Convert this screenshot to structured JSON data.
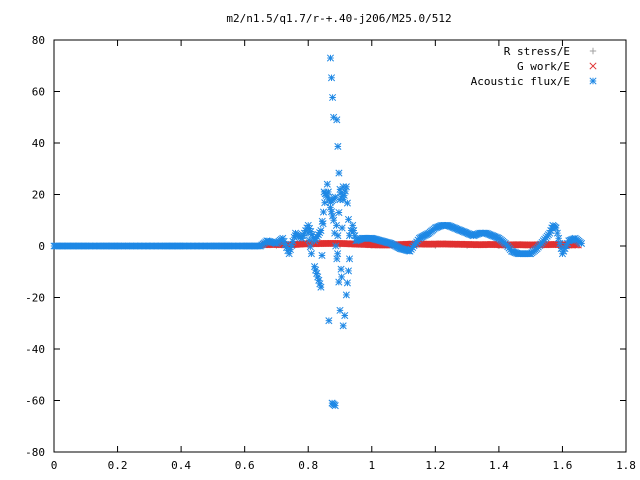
{
  "chart_data": {
    "type": "scatter",
    "title": "m2/n1.5/q1.7/r-+.40-j206/M25.0/512",
    "xlabel": "",
    "ylabel": "",
    "xlim": [
      0,
      1.8
    ],
    "ylim": [
      -80,
      80
    ],
    "x_ticks": [
      "0",
      "0.2",
      "0.4",
      "0.6",
      "0.8",
      "1",
      "1.2",
      "1.4",
      "1.6",
      "1.8"
    ],
    "y_ticks": [
      "80",
      "60",
      "40",
      "20",
      "0",
      "-20",
      "-40",
      "-60",
      "-80"
    ],
    "grid": false,
    "legend_position": "top-right",
    "series": [
      {
        "name": "R stress/E",
        "marker": "plus",
        "color": "#a0a0a0",
        "x": [
          0.02,
          0.1,
          0.2,
          0.3,
          0.4,
          0.5,
          0.6,
          0.7,
          0.8,
          0.9,
          1.0,
          1.1,
          1.2,
          1.3,
          1.4,
          1.5,
          1.6
        ],
        "y": [
          0,
          0,
          0,
          0,
          0,
          0,
          0,
          0.2,
          0.3,
          0.3,
          0.3,
          0.2,
          0.2,
          0.2,
          0.1,
          0.1,
          0.1
        ]
      },
      {
        "name": "G work/E",
        "marker": "cross",
        "color": "#e03030",
        "x": [
          0.66,
          0.7,
          0.74,
          0.78,
          0.82,
          0.86,
          0.9,
          0.94,
          0.98,
          1.02,
          1.06,
          1.1,
          1.14,
          1.18,
          1.22,
          1.26,
          1.3,
          1.34,
          1.38,
          1.42,
          1.46,
          1.5,
          1.54,
          1.58,
          1.62,
          1.65
        ],
        "y": [
          0.5,
          0.6,
          0.4,
          0.8,
          0.9,
          1.0,
          1.0,
          0.8,
          0.6,
          0.4,
          0.4,
          0.6,
          0.8,
          0.7,
          0.8,
          0.7,
          0.6,
          0.5,
          0.6,
          0.4,
          0.5,
          0.4,
          0.5,
          0.6,
          0.4,
          0.4
        ]
      },
      {
        "name": "Acoustic flux/E",
        "marker": "star",
        "color": "#1e88e5",
        "x": [
          0.0,
          0.05,
          0.1,
          0.15,
          0.2,
          0.25,
          0.3,
          0.35,
          0.4,
          0.45,
          0.5,
          0.55,
          0.6,
          0.65,
          0.67,
          0.7,
          0.72,
          0.74,
          0.76,
          0.78,
          0.8,
          0.82,
          0.84,
          0.86,
          0.87,
          0.88,
          0.89,
          0.9,
          0.91,
          0.92,
          0.93,
          0.94,
          0.95,
          0.97,
          1.0,
          1.03,
          1.06,
          1.09,
          1.12,
          1.15,
          1.18,
          1.2,
          1.22,
          1.24,
          1.26,
          1.28,
          1.3,
          1.32,
          1.34,
          1.36,
          1.38,
          1.4,
          1.42,
          1.44,
          1.46,
          1.48,
          1.5,
          1.52,
          1.54,
          1.56,
          1.57,
          1.58,
          1.6,
          1.62,
          1.64,
          1.66,
          0.87,
          0.88,
          0.875,
          0.885,
          0.89,
          0.9,
          0.905,
          0.91,
          0.915,
          0.92,
          0.93,
          0.865,
          0.87,
          0.885,
          0.9,
          0.91,
          0.82,
          0.83,
          0.84,
          0.85,
          0.86,
          0.8,
          0.81,
          0.78,
          0.76
        ],
        "y": [
          0,
          0,
          0,
          0,
          0,
          0,
          0,
          0,
          0,
          0,
          0,
          0,
          0,
          0,
          2,
          1,
          3,
          -3,
          5,
          3,
          8,
          2,
          6,
          24,
          15,
          10,
          -5,
          22,
          18,
          23,
          4,
          8,
          2,
          3,
          3,
          2,
          1,
          -1,
          -2,
          3,
          5,
          7,
          8,
          8,
          7,
          6,
          5,
          4,
          5,
          5,
          4,
          3,
          1,
          -2,
          -3,
          -3,
          -3,
          -1,
          2,
          5,
          8,
          7,
          -3,
          2,
          3,
          1,
          73,
          50,
          -61,
          -62,
          49,
          18,
          -12,
          -31,
          -27,
          -19,
          -5,
          -29,
          17,
          19,
          -25,
          23,
          -8,
          -12,
          -16,
          21,
          19,
          5,
          -3,
          3,
          4
        ]
      }
    ]
  }
}
